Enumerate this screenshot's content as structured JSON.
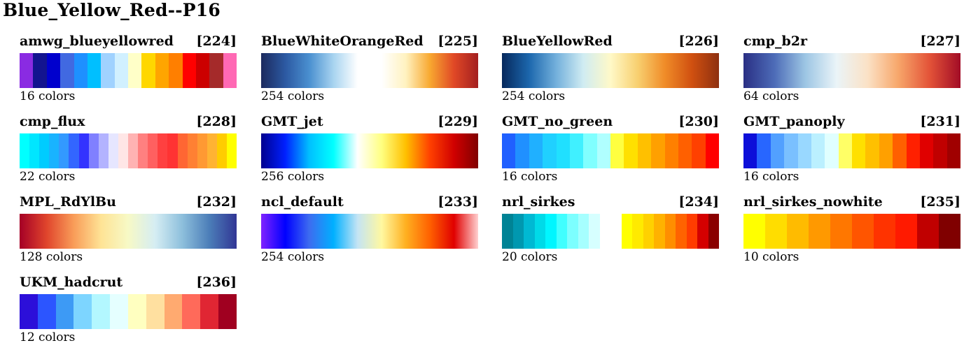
{
  "title": "Blue_Yellow_Red--P16",
  "palettes": [
    {
      "name": "amwg_blueyellowred",
      "index": "[224]",
      "count": "16 colors",
      "type": "discrete",
      "colors": [
        "#8a2be2",
        "#13148f",
        "#0000cd",
        "#4169e1",
        "#1e90ff",
        "#00bfff",
        "#a0d2ff",
        "#d1f0ff",
        "#ffffc8",
        "#ffd700",
        "#ffa500",
        "#ff7f00",
        "#ff0000",
        "#cc0000",
        "#a52a2a",
        "#ff69b4"
      ]
    },
    {
      "name": "BlueWhiteOrangeRed",
      "index": "[225]",
      "count": "254 colors",
      "type": "gradient",
      "colors": [
        "#1c2a5e",
        "#2c59a2",
        "#4a90d0",
        "#a8d4f0",
        "#ffffff",
        "#ffffff",
        "#fff2c0",
        "#f8a830",
        "#e04826",
        "#a31f20"
      ]
    },
    {
      "name": "BlueYellowRed",
      "index": "[226]",
      "count": "254 colors",
      "type": "gradient",
      "colors": [
        "#06285c",
        "#1c67ad",
        "#73b0dc",
        "#d0ecf2",
        "#fff9c8",
        "#f8d070",
        "#f08c28",
        "#d05010",
        "#8e3010"
      ]
    },
    {
      "name": "cmp_b2r",
      "index": "[227]",
      "count": "64 colors",
      "type": "gradient",
      "colors": [
        "#2a2f84",
        "#4d6cb8",
        "#9dc6e4",
        "#eaf4f8",
        "#fbe2c6",
        "#f7a66a",
        "#e35338",
        "#a20c26"
      ]
    },
    {
      "name": "cmp_flux",
      "index": "[228]",
      "count": "22 colors",
      "type": "discrete",
      "colors": [
        "#00ffff",
        "#00e6ff",
        "#00ccff",
        "#19b3ff",
        "#3399ff",
        "#3366ff",
        "#3333ff",
        "#8080ff",
        "#b3b3ff",
        "#e6e6ff",
        "#ffe6e6",
        "#ffb3b3",
        "#ff8080",
        "#ff6060",
        "#ff4040",
        "#ff3333",
        "#ff6633",
        "#ff8033",
        "#ff9933",
        "#ffb333",
        "#ffcc00",
        "#ffff00"
      ]
    },
    {
      "name": "GMT_jet",
      "index": "[229]",
      "count": "256 colors",
      "type": "gradient",
      "colors": [
        "#00008f",
        "#0020ff",
        "#00c0ff",
        "#00ffff",
        "#ffffff",
        "#ffff80",
        "#ffc000",
        "#ff4000",
        "#d00000",
        "#800000"
      ]
    },
    {
      "name": "GMT_no_green",
      "index": "[230]",
      "count": "16 colors",
      "type": "discrete",
      "colors": [
        "#2060ff",
        "#2090ff",
        "#20b0ff",
        "#20d0ff",
        "#20e0ff",
        "#40f0ff",
        "#80ffff",
        "#b0ffff",
        "#ffff40",
        "#ffe000",
        "#ffc000",
        "#ffa000",
        "#ff8000",
        "#ff6000",
        "#ff4000",
        "#ff0000"
      ]
    },
    {
      "name": "GMT_panoply",
      "index": "[231]",
      "count": "16 colors",
      "type": "discrete",
      "colors": [
        "#0d0fd9",
        "#2866ff",
        "#52a0ff",
        "#7ac0ff",
        "#99d8ff",
        "#bbf0ff",
        "#e0ffff",
        "#ffff66",
        "#ffe000",
        "#ffc000",
        "#ffa000",
        "#ff6000",
        "#ff2000",
        "#e00000",
        "#c00000",
        "#a00000"
      ]
    },
    {
      "name": "MPL_RdYlBu",
      "index": "[232]",
      "count": "128 colors",
      "type": "gradient",
      "colors": [
        "#a50026",
        "#e0452c",
        "#f99d59",
        "#fee395",
        "#f7f9c6",
        "#d5edf3",
        "#8dbfdc",
        "#4b7db8",
        "#313695"
      ]
    },
    {
      "name": "ncl_default",
      "index": "[233]",
      "count": "254 colors",
      "type": "gradient",
      "colors": [
        "#8023ff",
        "#0000ff",
        "#3d6cf0",
        "#00b0ff",
        "#c4e4f4",
        "#fff8a0",
        "#ffb020",
        "#ff6000",
        "#e00000",
        "#ffd0d0"
      ]
    },
    {
      "name": "nrl_sirkes",
      "index": "[234]",
      "count": "20 colors",
      "type": "discrete",
      "colors": [
        "#008395",
        "#0098b0",
        "#00b9d3",
        "#00dae8",
        "#00f6ff",
        "#40ffff",
        "#7cffff",
        "#a6ffff",
        "#d6ffff",
        "#ffffff",
        "#ffffff",
        "#ffff00",
        "#ffea00",
        "#ffd100",
        "#ffb200",
        "#ff8e00",
        "#ff6300",
        "#ff3c00",
        "#d40000",
        "#8a0000"
      ]
    },
    {
      "name": "nrl_sirkes_nowhite",
      "index": "[235]",
      "count": "10 colors",
      "type": "discrete",
      "colors": [
        "#ffff00",
        "#ffdd00",
        "#ffbb00",
        "#ff9900",
        "#ff7700",
        "#ff5500",
        "#ff3300",
        "#ff1a00",
        "#c00000",
        "#800000"
      ]
    },
    {
      "name": "UKM_hadcrut",
      "index": "[236]",
      "count": "12 colors",
      "type": "discrete",
      "colors": [
        "#2c0fd9",
        "#2c55ff",
        "#3d9af5",
        "#7dd5ff",
        "#b3f7ff",
        "#e5ffff",
        "#ffffc0",
        "#ffe0a0",
        "#ffaa70",
        "#ff6a5a",
        "#e02633",
        "#a00020"
      ]
    }
  ]
}
